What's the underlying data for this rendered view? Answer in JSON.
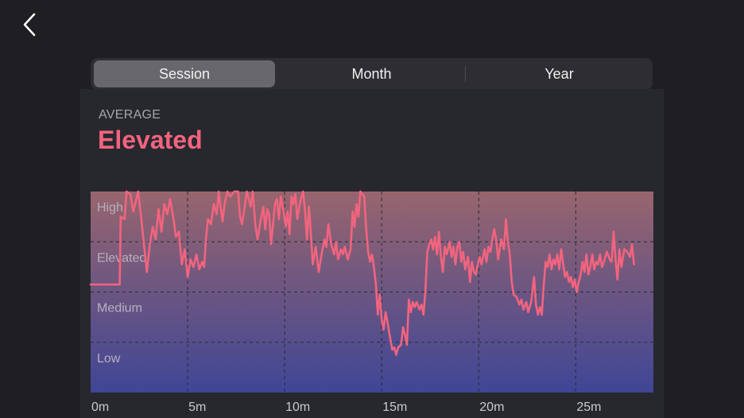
{
  "tabs": [
    {
      "label": "Session",
      "active": true
    },
    {
      "label": "Month",
      "active": false
    },
    {
      "label": "Year",
      "active": false
    }
  ],
  "summary": {
    "label": "AVERAGE",
    "value": "Elevated"
  },
  "colors": {
    "accent": "#f2647e",
    "gradient_top": "#98656e",
    "gradient_bottom": "#3f4696"
  },
  "chart_data": {
    "type": "line",
    "title": "",
    "xlabel": "",
    "ylabel": "",
    "xlim": [
      0,
      29
    ],
    "ylim": [
      0,
      4
    ],
    "grid": true,
    "x_ticks": [
      0,
      5,
      10,
      15,
      20,
      25
    ],
    "x_tick_labels": [
      "0m",
      "5m",
      "10m",
      "15m",
      "20m",
      "25m"
    ],
    "y_bands": [
      "High",
      "Elevated",
      "Medium",
      "Low"
    ],
    "series": [
      {
        "name": "",
        "color": "#f2647e",
        "points": [
          [
            0,
            2.15
          ],
          [
            1.5,
            2.15
          ],
          [
            1.55,
            3.5
          ],
          [
            1.75,
            3.45
          ],
          [
            1.85,
            4.0
          ],
          [
            2.05,
            3.95
          ],
          [
            2.2,
            3.6
          ],
          [
            2.45,
            4.0
          ],
          [
            2.6,
            3.5
          ],
          [
            2.75,
            2.95
          ],
          [
            2.9,
            2.4
          ],
          [
            3.05,
            2.95
          ],
          [
            3.2,
            3.3
          ],
          [
            3.35,
            3.05
          ],
          [
            3.5,
            3.65
          ],
          [
            3.65,
            3.2
          ],
          [
            3.8,
            3.75
          ],
          [
            3.95,
            3.55
          ],
          [
            4.1,
            3.85
          ],
          [
            4.25,
            3.5
          ],
          [
            4.4,
            3.1
          ],
          [
            4.55,
            3.2
          ],
          [
            4.7,
            2.55
          ],
          [
            4.85,
            2.85
          ],
          [
            5.0,
            2.3
          ],
          [
            5.15,
            2.65
          ],
          [
            5.3,
            2.5
          ],
          [
            5.45,
            2.75
          ],
          [
            5.6,
            2.45
          ],
          [
            5.75,
            2.6
          ],
          [
            5.85,
            2.5
          ],
          [
            5.95,
            3.1
          ],
          [
            6.05,
            3.45
          ],
          [
            6.2,
            3.35
          ],
          [
            6.35,
            3.75
          ],
          [
            6.5,
            3.55
          ],
          [
            6.6,
            4.0
          ],
          [
            6.8,
            3.4
          ],
          [
            6.9,
            3.75
          ],
          [
            7.05,
            4.0
          ],
          [
            7.2,
            3.9
          ],
          [
            7.4,
            4.0
          ],
          [
            7.6,
            4.0
          ],
          [
            7.7,
            3.5
          ],
          [
            7.8,
            3.35
          ],
          [
            7.9,
            3.6
          ],
          [
            8.05,
            4.0
          ],
          [
            8.25,
            3.7
          ],
          [
            8.35,
            4.0
          ],
          [
            8.5,
            3.3
          ],
          [
            8.6,
            3.05
          ],
          [
            8.75,
            3.4
          ],
          [
            8.9,
            3.7
          ],
          [
            9.0,
            3.25
          ],
          [
            9.1,
            3.65
          ],
          [
            9.2,
            3.55
          ],
          [
            9.3,
            2.95
          ],
          [
            9.4,
            3.35
          ],
          [
            9.5,
            3.75
          ],
          [
            9.6,
            3.85
          ],
          [
            9.7,
            3.45
          ],
          [
            9.8,
            3.9
          ],
          [
            9.95,
            3.6
          ],
          [
            10.05,
            3.3
          ],
          [
            10.15,
            3.6
          ],
          [
            10.25,
            3.15
          ],
          [
            10.35,
            3.9
          ],
          [
            10.45,
            3.75
          ],
          [
            10.55,
            3.95
          ],
          [
            10.65,
            3.45
          ],
          [
            10.8,
            3.8
          ],
          [
            10.95,
            4.0
          ],
          [
            11.05,
            3.6
          ],
          [
            11.15,
            3.05
          ],
          [
            11.25,
            3.7
          ],
          [
            11.35,
            3.15
          ],
          [
            11.45,
            2.55
          ],
          [
            11.6,
            2.9
          ],
          [
            11.75,
            2.4
          ],
          [
            11.9,
            2.75
          ],
          [
            12.05,
            3.05
          ],
          [
            12.15,
            2.9
          ],
          [
            12.25,
            3.35
          ],
          [
            12.4,
            2.95
          ],
          [
            12.55,
            2.75
          ],
          [
            12.65,
            3.0
          ],
          [
            12.75,
            2.65
          ],
          [
            12.9,
            2.85
          ],
          [
            13.0,
            2.75
          ],
          [
            13.1,
            2.9
          ],
          [
            13.25,
            2.65
          ],
          [
            13.4,
            2.85
          ],
          [
            13.5,
            3.6
          ],
          [
            13.6,
            3.3
          ],
          [
            13.7,
            3.75
          ],
          [
            13.8,
            3.5
          ],
          [
            13.9,
            4.0
          ],
          [
            14.1,
            3.9
          ],
          [
            14.2,
            3.25
          ],
          [
            14.3,
            2.8
          ],
          [
            14.4,
            2.6
          ],
          [
            14.5,
            2.75
          ],
          [
            14.6,
            2.5
          ],
          [
            14.7,
            2.15
          ],
          [
            14.8,
            1.55
          ],
          [
            14.9,
            1.95
          ],
          [
            15.0,
            1.45
          ],
          [
            15.1,
            1.25
          ],
          [
            15.2,
            1.6
          ],
          [
            15.3,
            1.4
          ],
          [
            15.45,
            1.05
          ],
          [
            15.55,
            0.85
          ],
          [
            15.65,
            0.9
          ],
          [
            15.75,
            0.75
          ],
          [
            15.85,
            0.9
          ],
          [
            16.0,
            0.95
          ],
          [
            16.1,
            1.3
          ],
          [
            16.2,
            1.15
          ],
          [
            16.3,
            0.95
          ],
          [
            16.4,
            1.85
          ],
          [
            16.5,
            1.6
          ],
          [
            16.6,
            1.8
          ],
          [
            16.7,
            1.7
          ],
          [
            16.8,
            1.8
          ],
          [
            16.95,
            1.65
          ],
          [
            17.05,
            1.75
          ],
          [
            17.15,
            1.55
          ],
          [
            17.25,
            2.0
          ],
          [
            17.35,
            2.8
          ],
          [
            17.45,
            2.95
          ],
          [
            17.55,
            3.05
          ],
          [
            17.65,
            2.85
          ],
          [
            17.75,
            3.1
          ],
          [
            17.85,
            2.75
          ],
          [
            17.95,
            3.2
          ],
          [
            18.05,
            2.7
          ],
          [
            18.15,
            2.4
          ],
          [
            18.25,
            2.9
          ],
          [
            18.35,
            2.75
          ],
          [
            18.5,
            3.0
          ],
          [
            18.6,
            2.7
          ],
          [
            18.7,
            2.9
          ],
          [
            18.8,
            2.55
          ],
          [
            18.9,
            2.9
          ],
          [
            19.0,
            3.0
          ],
          [
            19.1,
            2.6
          ],
          [
            19.2,
            2.8
          ],
          [
            19.3,
            2.45
          ],
          [
            19.45,
            2.7
          ],
          [
            19.55,
            2.2
          ],
          [
            19.65,
            2.6
          ],
          [
            19.75,
            2.4
          ],
          [
            19.85,
            2.35
          ],
          [
            19.95,
            2.55
          ],
          [
            20.05,
            2.7
          ],
          [
            20.15,
            2.55
          ],
          [
            20.3,
            2.85
          ],
          [
            20.4,
            2.6
          ],
          [
            20.5,
            2.9
          ],
          [
            20.6,
            2.8
          ],
          [
            20.7,
            3.05
          ],
          [
            20.8,
            3.25
          ],
          [
            20.9,
            3.05
          ],
          [
            21.0,
            2.65
          ],
          [
            21.15,
            3.05
          ],
          [
            21.3,
            2.85
          ],
          [
            21.4,
            3.45
          ],
          [
            21.5,
            3.0
          ],
          [
            21.6,
            2.75
          ],
          [
            21.7,
            2.2
          ],
          [
            21.8,
            1.95
          ],
          [
            21.95,
            1.9
          ],
          [
            22.1,
            1.75
          ],
          [
            22.2,
            1.85
          ],
          [
            22.3,
            1.65
          ],
          [
            22.45,
            1.8
          ],
          [
            22.55,
            1.6
          ],
          [
            22.7,
            1.8
          ],
          [
            22.85,
            2.3
          ],
          [
            22.95,
            1.75
          ],
          [
            23.05,
            1.55
          ],
          [
            23.15,
            1.7
          ],
          [
            23.25,
            1.55
          ],
          [
            23.35,
            2.15
          ],
          [
            23.45,
            2.6
          ],
          [
            23.55,
            2.5
          ],
          [
            23.65,
            2.75
          ],
          [
            23.75,
            2.45
          ],
          [
            23.85,
            2.65
          ],
          [
            23.95,
            2.55
          ],
          [
            24.05,
            2.75
          ],
          [
            24.15,
            2.45
          ],
          [
            24.25,
            2.85
          ],
          [
            24.35,
            2.55
          ],
          [
            24.45,
            2.3
          ],
          [
            24.55,
            2.4
          ],
          [
            24.65,
            2.2
          ],
          [
            24.75,
            2.3
          ],
          [
            24.85,
            2.1
          ],
          [
            24.95,
            2.25
          ],
          [
            25.05,
            2.0
          ],
          [
            25.15,
            2.2
          ],
          [
            25.25,
            2.35
          ],
          [
            25.35,
            2.6
          ],
          [
            25.45,
            2.4
          ],
          [
            25.55,
            2.75
          ],
          [
            25.65,
            2.35
          ],
          [
            25.75,
            2.5
          ],
          [
            25.85,
            2.75
          ],
          [
            25.95,
            2.45
          ],
          [
            26.05,
            2.6
          ],
          [
            26.15,
            2.55
          ],
          [
            26.25,
            2.75
          ],
          [
            26.35,
            2.5
          ],
          [
            26.45,
            2.6
          ],
          [
            26.6,
            2.8
          ],
          [
            26.75,
            2.65
          ],
          [
            26.85,
            2.6
          ],
          [
            26.95,
            3.2
          ],
          [
            27.05,
            2.65
          ],
          [
            27.15,
            2.25
          ],
          [
            27.25,
            2.85
          ],
          [
            27.35,
            2.5
          ],
          [
            27.5,
            2.85
          ],
          [
            27.65,
            2.8
          ],
          [
            27.8,
            2.7
          ],
          [
            27.9,
            2.95
          ],
          [
            28.0,
            2.55
          ]
        ]
      }
    ]
  }
}
